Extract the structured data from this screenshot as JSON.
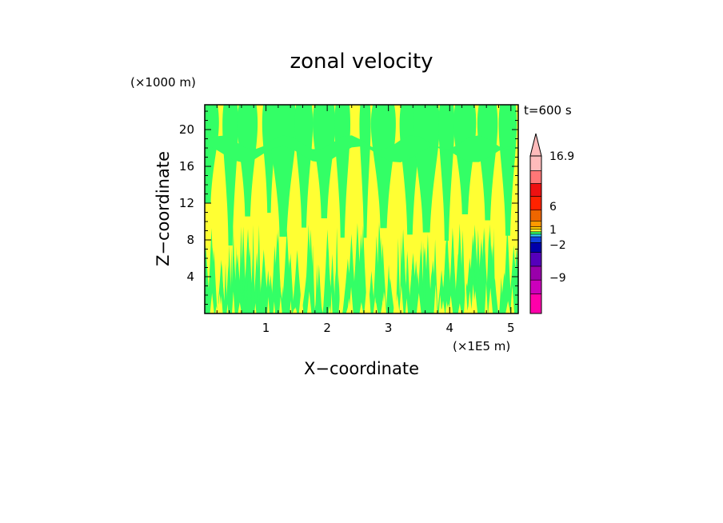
{
  "chart_data": {
    "type": "heatmap",
    "title": "zonal velocity",
    "xlabel": "X−coordinate",
    "ylabel": "Z−coordinate",
    "x_unit": "(×1E5 m)",
    "y_unit": "(×1000 m)",
    "time_label": "t=600 s",
    "xlim": [
      0,
      5.12
    ],
    "ylim": [
      0,
      22.7
    ],
    "x_ticks": [
      "1",
      "2",
      "3",
      "4",
      "5"
    ],
    "x_tick_values": [
      1,
      2,
      3,
      4,
      5
    ],
    "y_ticks": [
      "4",
      "8",
      "12",
      "16",
      "20"
    ],
    "y_tick_values": [
      4,
      8,
      12,
      16,
      20
    ],
    "fill_colors": {
      "positive": "#ffff33",
      "negative": "#33ff66"
    },
    "colorbar": {
      "labels": [
        {
          "text": "16.9",
          "value": 16.9
        },
        {
          "text": "6",
          "value": 6
        },
        {
          "text": "1",
          "value": 1
        },
        {
          "text": "−2",
          "value": -2
        },
        {
          "text": "−9",
          "value": -9
        }
      ],
      "colors": [
        "#ff00aa",
        "#cc00bb",
        "#9900aa",
        "#5500bb",
        "#0000aa",
        "#1144dd",
        "#33ccff",
        "#33ff66",
        "#ffff33",
        "#ffcc00",
        "#ff9900",
        "#ee6600",
        "#ff2200",
        "#ee1111",
        "#ff7777",
        "#ffbbbb"
      ],
      "has_overflow_arrow": true
    }
  }
}
